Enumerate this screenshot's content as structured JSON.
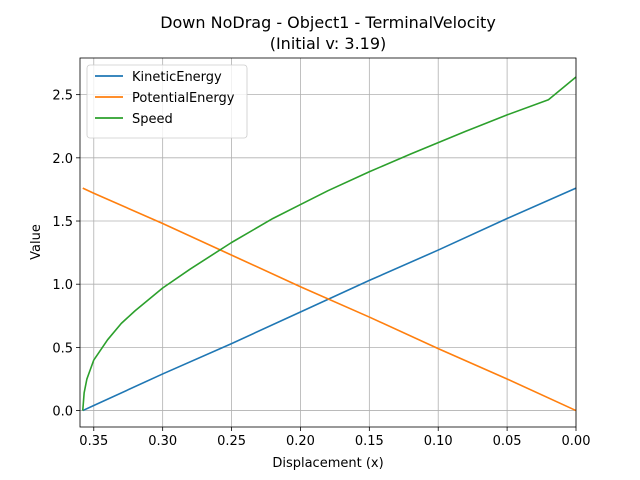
{
  "chart_data": {
    "type": "line",
    "title": "Down NoDrag - Object1 - TerminalVelocity",
    "subtitle": "(Initial v: 3.19)",
    "xlabel": "Displacement (x)",
    "ylabel": "Value",
    "xlim": [
      0.36,
      0.0
    ],
    "ylim": [
      -0.13,
      2.79
    ],
    "x_inverted": true,
    "x_ticks": [
      "0.35",
      "0.30",
      "0.25",
      "0.20",
      "0.15",
      "0.10",
      "0.05",
      "0.00"
    ],
    "x_tick_values": [
      0.35,
      0.3,
      0.25,
      0.2,
      0.15,
      0.1,
      0.05,
      0.0
    ],
    "y_ticks": [
      "0.0",
      "0.5",
      "1.0",
      "1.5",
      "2.0",
      "2.5"
    ],
    "y_tick_values": [
      0.0,
      0.5,
      1.0,
      1.5,
      2.0,
      2.5
    ],
    "grid": true,
    "legend_position": "top-left",
    "series": [
      {
        "name": "KineticEnergy",
        "color": "#1f77b4",
        "x": [
          0.358,
          0.35,
          0.3,
          0.25,
          0.2,
          0.15,
          0.1,
          0.05,
          0.0
        ],
        "y": [
          0.0,
          0.04,
          0.29,
          0.53,
          0.78,
          1.03,
          1.27,
          1.52,
          1.76
        ]
      },
      {
        "name": "PotentialEnergy",
        "color": "#ff7f0e",
        "x": [
          0.358,
          0.35,
          0.3,
          0.25,
          0.2,
          0.15,
          0.1,
          0.05,
          0.0
        ],
        "y": [
          1.76,
          1.72,
          1.48,
          1.23,
          0.98,
          0.74,
          0.49,
          0.25,
          0.0
        ]
      },
      {
        "name": "Speed",
        "color": "#2ca02c",
        "x": [
          0.358,
          0.357,
          0.355,
          0.35,
          0.34,
          0.33,
          0.32,
          0.3,
          0.28,
          0.25,
          0.22,
          0.2,
          0.18,
          0.15,
          0.12,
          0.1,
          0.08,
          0.05,
          0.02,
          0.0
        ],
        "y": [
          0.0,
          0.14,
          0.25,
          0.4,
          0.56,
          0.69,
          0.79,
          0.97,
          1.12,
          1.33,
          1.52,
          1.63,
          1.74,
          1.89,
          2.03,
          2.12,
          2.21,
          2.34,
          2.46,
          2.64
        ]
      }
    ]
  }
}
